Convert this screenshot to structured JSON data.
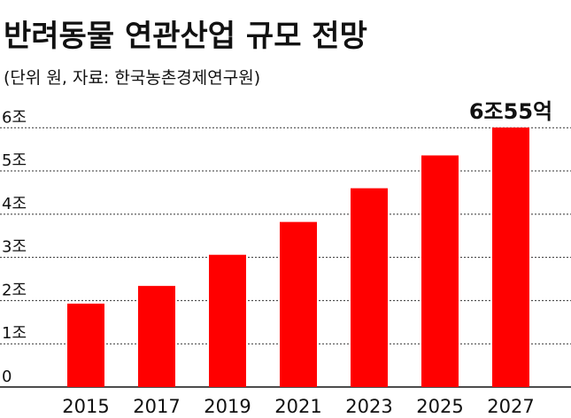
{
  "chart_data": {
    "type": "bar",
    "title": "반려동물 연관산업 규모 전망",
    "subtitle": "(단위 원, 자료: 한국농촌경제연구원)",
    "categories": [
      "2015",
      "2017",
      "2019",
      "2021",
      "2023",
      "2025",
      "2027"
    ],
    "values": [
      1.93,
      2.34,
      3.06,
      3.82,
      4.6,
      5.36,
      6.0055
    ],
    "value_labels": [
      null,
      null,
      null,
      null,
      null,
      null,
      "6조55억"
    ],
    "color": "#ff0000",
    "ylim": [
      0,
      6.6
    ],
    "yticks": [
      0,
      {
        "value": 1,
        "label": "1조"
      },
      {
        "value": 2,
        "label": "2조"
      },
      {
        "value": 3,
        "label": "3조"
      },
      {
        "value": 4,
        "label": "4조"
      },
      {
        "value": 5,
        "label": "5조"
      },
      {
        "value": 6,
        "label": "6조"
      }
    ],
    "grid": true
  }
}
